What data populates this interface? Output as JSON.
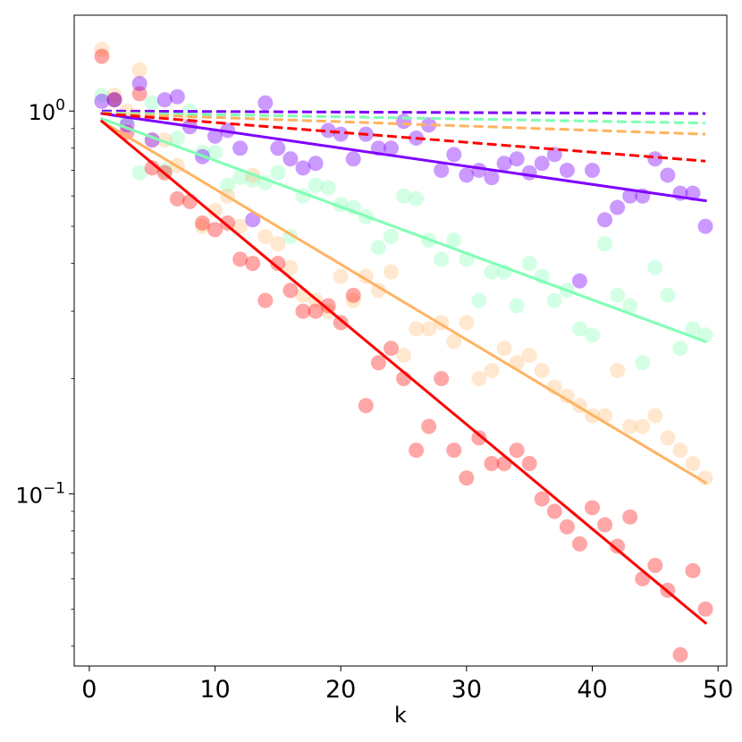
{
  "chart_data": {
    "type": "scatter",
    "title": "",
    "xlabel": "k",
    "ylabel": "",
    "xscale": "linear",
    "yscale": "log",
    "xlim": [
      -1.2,
      50.7
    ],
    "ylim": [
      0.0355,
      1.78
    ],
    "xticks": [
      0,
      10,
      20,
      30,
      40,
      50
    ],
    "xtick_labels": [
      "0",
      "10",
      "20",
      "30",
      "40",
      "50"
    ],
    "yticks": [
      1,
      0.1
    ],
    "ytick_labels": [
      {
        "base": "10",
        "exp": "0"
      },
      {
        "base": "10",
        "exp": "−1"
      }
    ],
    "grid": false,
    "legend": "none",
    "series": [
      {
        "name": "violet",
        "color": "#7f00ff",
        "point_alpha": 0.4,
        "x": [
          1,
          2,
          3,
          4,
          5,
          6,
          7,
          8,
          9,
          10,
          11,
          12,
          13,
          14,
          15,
          16,
          17,
          18,
          19,
          20,
          21,
          22,
          23,
          24,
          25,
          26,
          27,
          28,
          29,
          30,
          31,
          32,
          33,
          34,
          35,
          36,
          37,
          38,
          39,
          40,
          41,
          42,
          43,
          44,
          45,
          46,
          47,
          48,
          49
        ],
        "y": [
          1.06,
          1.07,
          0.92,
          1.18,
          0.84,
          1.07,
          1.09,
          0.91,
          0.76,
          0.86,
          0.89,
          0.8,
          0.52,
          1.05,
          0.8,
          0.75,
          0.71,
          0.73,
          0.89,
          0.87,
          0.75,
          0.87,
          0.8,
          0.8,
          0.94,
          0.85,
          0.92,
          0.7,
          0.77,
          0.68,
          0.7,
          0.67,
          0.73,
          0.75,
          0.69,
          0.73,
          0.77,
          0.7,
          0.36,
          0.7,
          0.52,
          0.56,
          0.6,
          0.6,
          0.75,
          0.68,
          0.61,
          0.61,
          0.5
        ],
        "fit_solid": [
          [
            1,
            0.985
          ],
          [
            49,
            0.583
          ]
        ],
        "fit_dashed": [
          [
            1,
            1.0
          ],
          [
            49,
            0.985
          ]
        ]
      },
      {
        "name": "aquamarine",
        "color": "#80ffb4",
        "point_alpha": 0.35,
        "x": [
          1,
          2,
          3,
          4,
          5,
          6,
          7,
          8,
          9,
          10,
          11,
          12,
          13,
          14,
          15,
          16,
          17,
          18,
          19,
          20,
          21,
          22,
          23,
          24,
          25,
          26,
          27,
          28,
          29,
          30,
          31,
          32,
          33,
          34,
          35,
          36,
          37,
          38,
          39,
          40,
          41,
          42,
          43,
          44,
          45,
          46,
          47,
          48,
          49
        ],
        "y": [
          1.1,
          1.07,
          0.95,
          0.69,
          1.05,
          0.7,
          0.85,
          1.0,
          0.78,
          0.78,
          0.64,
          0.67,
          0.66,
          0.65,
          0.69,
          0.47,
          0.6,
          0.64,
          0.63,
          0.57,
          0.56,
          0.53,
          0.44,
          0.47,
          0.6,
          0.59,
          0.46,
          0.41,
          0.46,
          0.41,
          0.32,
          0.38,
          0.38,
          0.31,
          0.4,
          0.37,
          0.32,
          0.34,
          0.27,
          0.26,
          0.45,
          0.33,
          0.31,
          0.22,
          0.39,
          0.33,
          0.24,
          0.27,
          0.26
        ],
        "fit_solid": [
          [
            1,
            0.955
          ],
          [
            49,
            0.25
          ]
        ],
        "fit_dashed": [
          [
            1,
            0.99
          ],
          [
            49,
            0.93
          ]
        ]
      },
      {
        "name": "light orange",
        "color": "#ffb360",
        "point_alpha": 0.3,
        "x": [
          1,
          2,
          3,
          4,
          5,
          6,
          7,
          8,
          9,
          10,
          11,
          12,
          13,
          14,
          15,
          16,
          17,
          18,
          19,
          20,
          21,
          22,
          23,
          24,
          25,
          26,
          27,
          28,
          29,
          30,
          31,
          32,
          33,
          34,
          35,
          36,
          37,
          38,
          39,
          40,
          41,
          42,
          43,
          44,
          45,
          46,
          47,
          48,
          49
        ],
        "y": [
          1.45,
          1.1,
          1.0,
          1.28,
          0.84,
          0.84,
          0.72,
          0.94,
          0.5,
          0.55,
          0.6,
          0.5,
          0.68,
          0.47,
          0.45,
          0.39,
          0.33,
          0.32,
          0.3,
          0.37,
          0.32,
          0.37,
          0.34,
          0.38,
          0.23,
          0.27,
          0.27,
          0.28,
          0.25,
          0.28,
          0.2,
          0.21,
          0.24,
          0.22,
          0.23,
          0.21,
          0.19,
          0.18,
          0.17,
          0.16,
          0.16,
          0.21,
          0.15,
          0.15,
          0.16,
          0.14,
          0.13,
          0.12,
          0.11
        ],
        "fit_solid": [
          [
            1,
            0.94
          ],
          [
            49,
            0.107
          ]
        ],
        "fit_dashed": [
          [
            1,
            0.985
          ],
          [
            49,
            0.87
          ]
        ]
      },
      {
        "name": "red",
        "color": "#ff0000",
        "point_alpha": 0.35,
        "x": [
          1,
          2,
          3,
          4,
          5,
          6,
          7,
          8,
          9,
          10,
          11,
          12,
          13,
          14,
          15,
          16,
          17,
          18,
          19,
          20,
          21,
          22,
          23,
          24,
          25,
          26,
          27,
          28,
          29,
          30,
          31,
          32,
          33,
          34,
          35,
          36,
          37,
          38,
          39,
          40,
          41,
          42,
          43,
          44,
          45,
          46,
          47,
          48,
          49
        ],
        "y": [
          1.39,
          1.07,
          0.88,
          1.11,
          0.71,
          0.69,
          0.59,
          0.58,
          0.51,
          0.49,
          0.51,
          0.41,
          0.4,
          0.32,
          0.4,
          0.34,
          0.3,
          0.3,
          0.31,
          0.28,
          0.33,
          0.17,
          0.22,
          0.24,
          0.2,
          0.13,
          0.15,
          0.2,
          0.13,
          0.11,
          0.14,
          0.12,
          0.12,
          0.13,
          0.12,
          0.097,
          0.09,
          0.082,
          0.074,
          0.092,
          0.083,
          0.073,
          0.087,
          0.06,
          0.065,
          0.056,
          0.038,
          0.063,
          0.05
        ],
        "fit_solid": [
          [
            1,
            0.94
          ],
          [
            49,
            0.046
          ]
        ],
        "fit_dashed": [
          [
            1,
            0.985
          ],
          [
            49,
            0.74
          ]
        ]
      }
    ]
  }
}
